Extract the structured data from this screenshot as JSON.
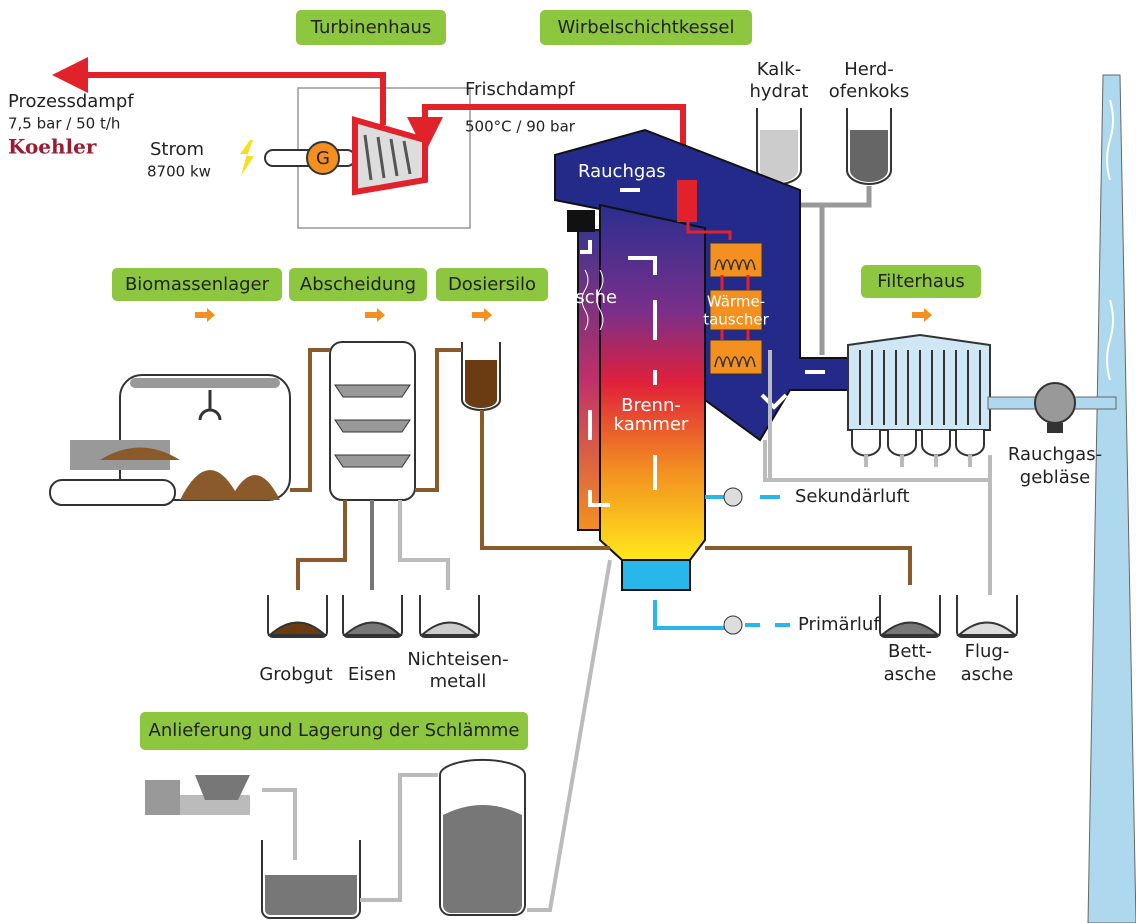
{
  "sections": {
    "turbine_house": "Turbinenhaus",
    "boiler": "Wirbelschichtkessel",
    "biomass_storage": "Biomassenlager",
    "separation": "Abscheidung",
    "dosing_silo": "Dosiersilo",
    "filter_house": "Filterhaus",
    "sludge": "Anlieferung und Lagerung der Schlämme"
  },
  "turbine": {
    "generator": "G",
    "process_steam": "Prozessdampf",
    "process_steam_spec": "7,5 bar / 50 t/h",
    "company": "Koehler",
    "power": "Strom",
    "power_value": "8700 kw",
    "live_steam": "Frischdampf",
    "live_steam_spec": "500°C / 90 bar"
  },
  "additives": {
    "lime": [
      "Kalk-",
      "hydrat"
    ],
    "coke": [
      "Herd-",
      "ofenkoks"
    ]
  },
  "boiler": {
    "flue_gas": "Rauchgas",
    "ash": "Asche",
    "heat_exchanger": [
      "Wärme-",
      "tauscher"
    ],
    "combustion_chamber": [
      "Brenn-",
      "kammer"
    ],
    "secondary_air": "Sekundärluft",
    "primary_air": "Primärluft"
  },
  "filter": {
    "fan": [
      "Rauchgas-",
      "gebläse"
    ]
  },
  "outputs": {
    "coarse": "Grobgut",
    "iron": "Eisen",
    "nonferrous": [
      "Nichteisen-",
      "metall"
    ],
    "bed_ash": [
      "Bett-",
      "asche"
    ],
    "fly_ash": [
      "Flug-",
      "asche"
    ]
  }
}
